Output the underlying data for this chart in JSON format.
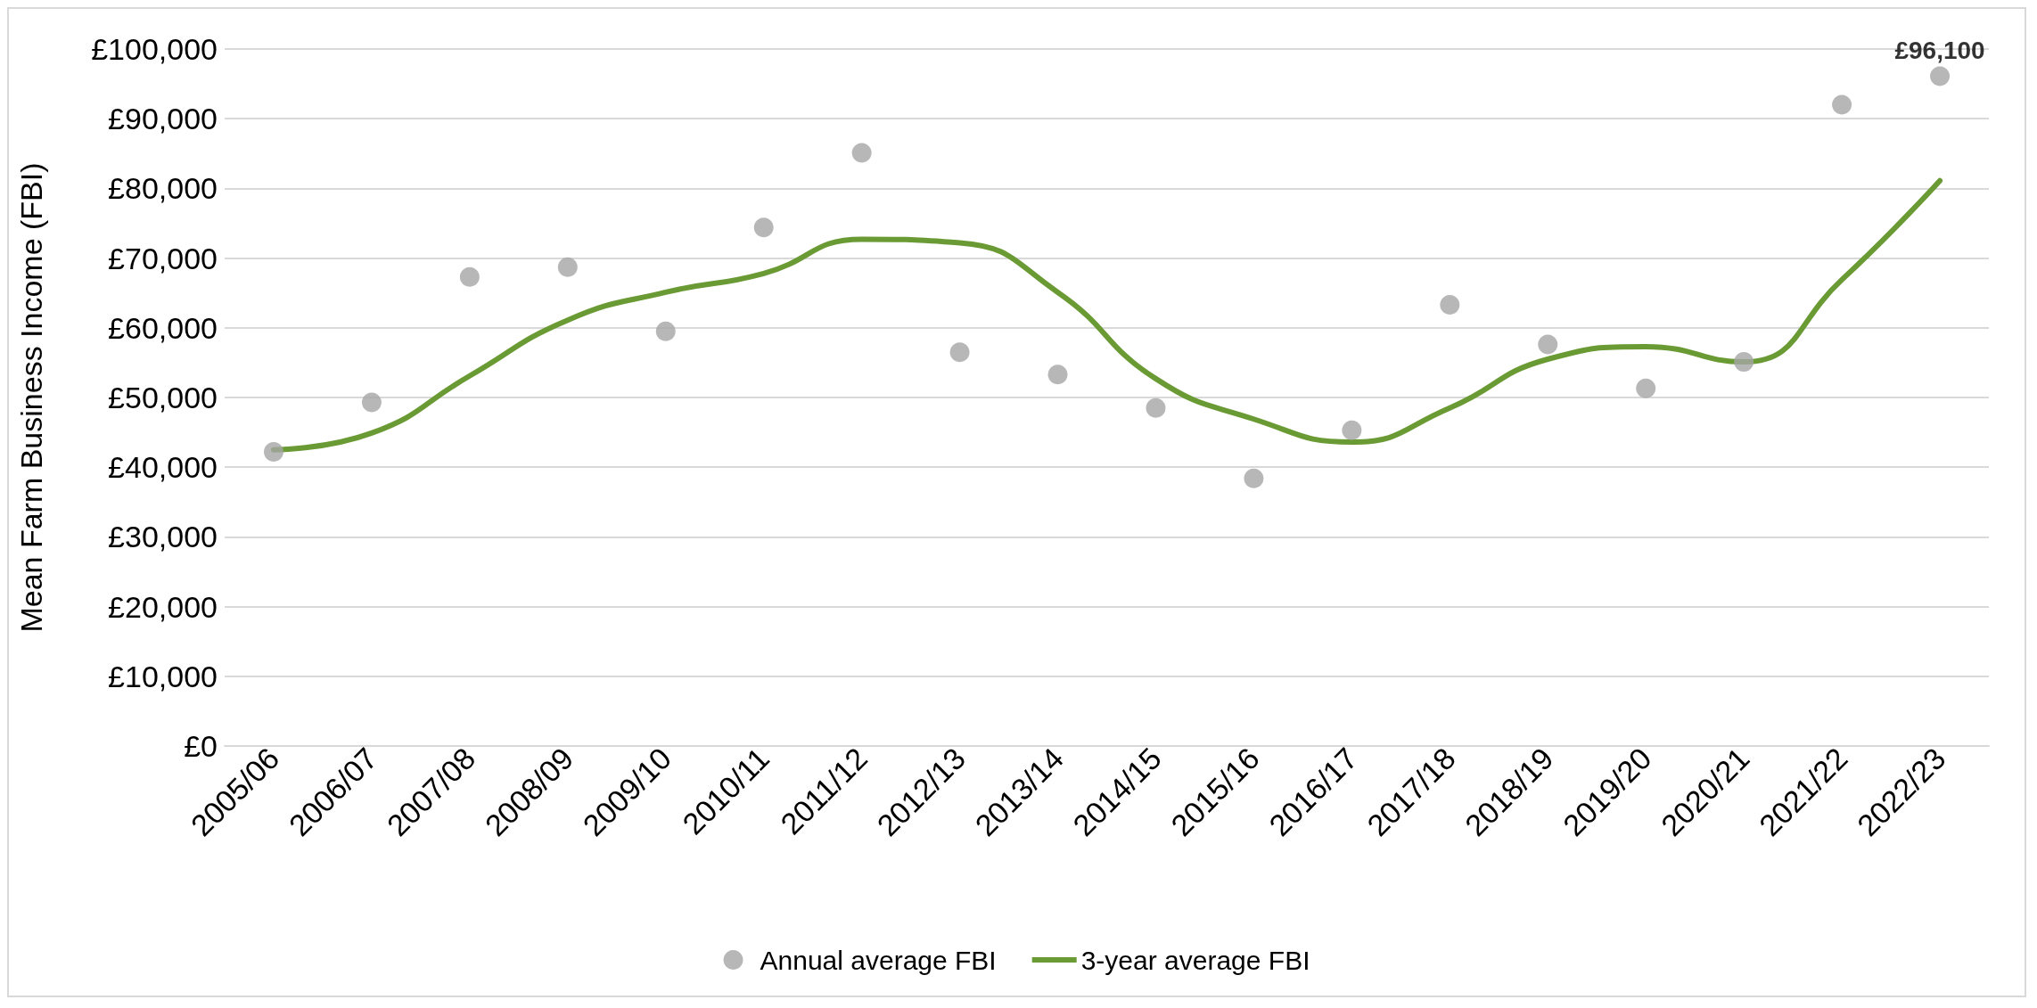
{
  "chart_data": {
    "type": "scatter",
    "ylabel": "Mean Farm Business Income (FBI)",
    "categories": [
      "2005/06",
      "2006/07",
      "2007/08",
      "2008/09",
      "2009/10",
      "2010/11",
      "2011/12",
      "2012/13",
      "2013/14",
      "2014/15",
      "2015/16",
      "2016/17",
      "2017/18",
      "2018/19",
      "2019/20",
      "2020/21",
      "2021/22",
      "2022/23"
    ],
    "series": [
      {
        "name": "Annual average FBI",
        "marker": "circle",
        "color": "#a5a5a5",
        "values": [
          42200,
          49300,
          67300,
          68700,
          59500,
          74400,
          85100,
          56500,
          53300,
          48500,
          38400,
          45300,
          63300,
          57600,
          51300,
          55100,
          92000,
          96100
        ],
        "value_labels": [
          null,
          null,
          null,
          null,
          null,
          null,
          null,
          null,
          null,
          null,
          null,
          null,
          null,
          null,
          null,
          null,
          null,
          "£96,100"
        ]
      },
      {
        "name": "3-year average FBI",
        "type": "line",
        "marker": "none",
        "color": "#6a9a34",
        "values": [
          42500,
          44900,
          53100,
          61100,
          65100,
          67800,
          72700,
          72200,
          65100,
          52700,
          46900,
          43600,
          48500,
          55500,
          57300,
          55100,
          66900,
          81100
        ]
      }
    ],
    "ylim": [
      0,
      100000
    ],
    "yticks": [
      {
        "value": 0,
        "label": "£0"
      },
      {
        "value": 10000,
        "label": "£10,000"
      },
      {
        "value": 20000,
        "label": "£20,000"
      },
      {
        "value": 30000,
        "label": "£30,000"
      },
      {
        "value": 40000,
        "label": "£40,000"
      },
      {
        "value": 50000,
        "label": "£50,000"
      },
      {
        "value": 60000,
        "label": "£60,000"
      },
      {
        "value": 70000,
        "label": "£70,000"
      },
      {
        "value": 80000,
        "label": "£80,000"
      },
      {
        "value": 90000,
        "label": "£90,000"
      },
      {
        "value": 100000,
        "label": "£100,000"
      }
    ],
    "grid": "y",
    "legend": "bottom"
  }
}
